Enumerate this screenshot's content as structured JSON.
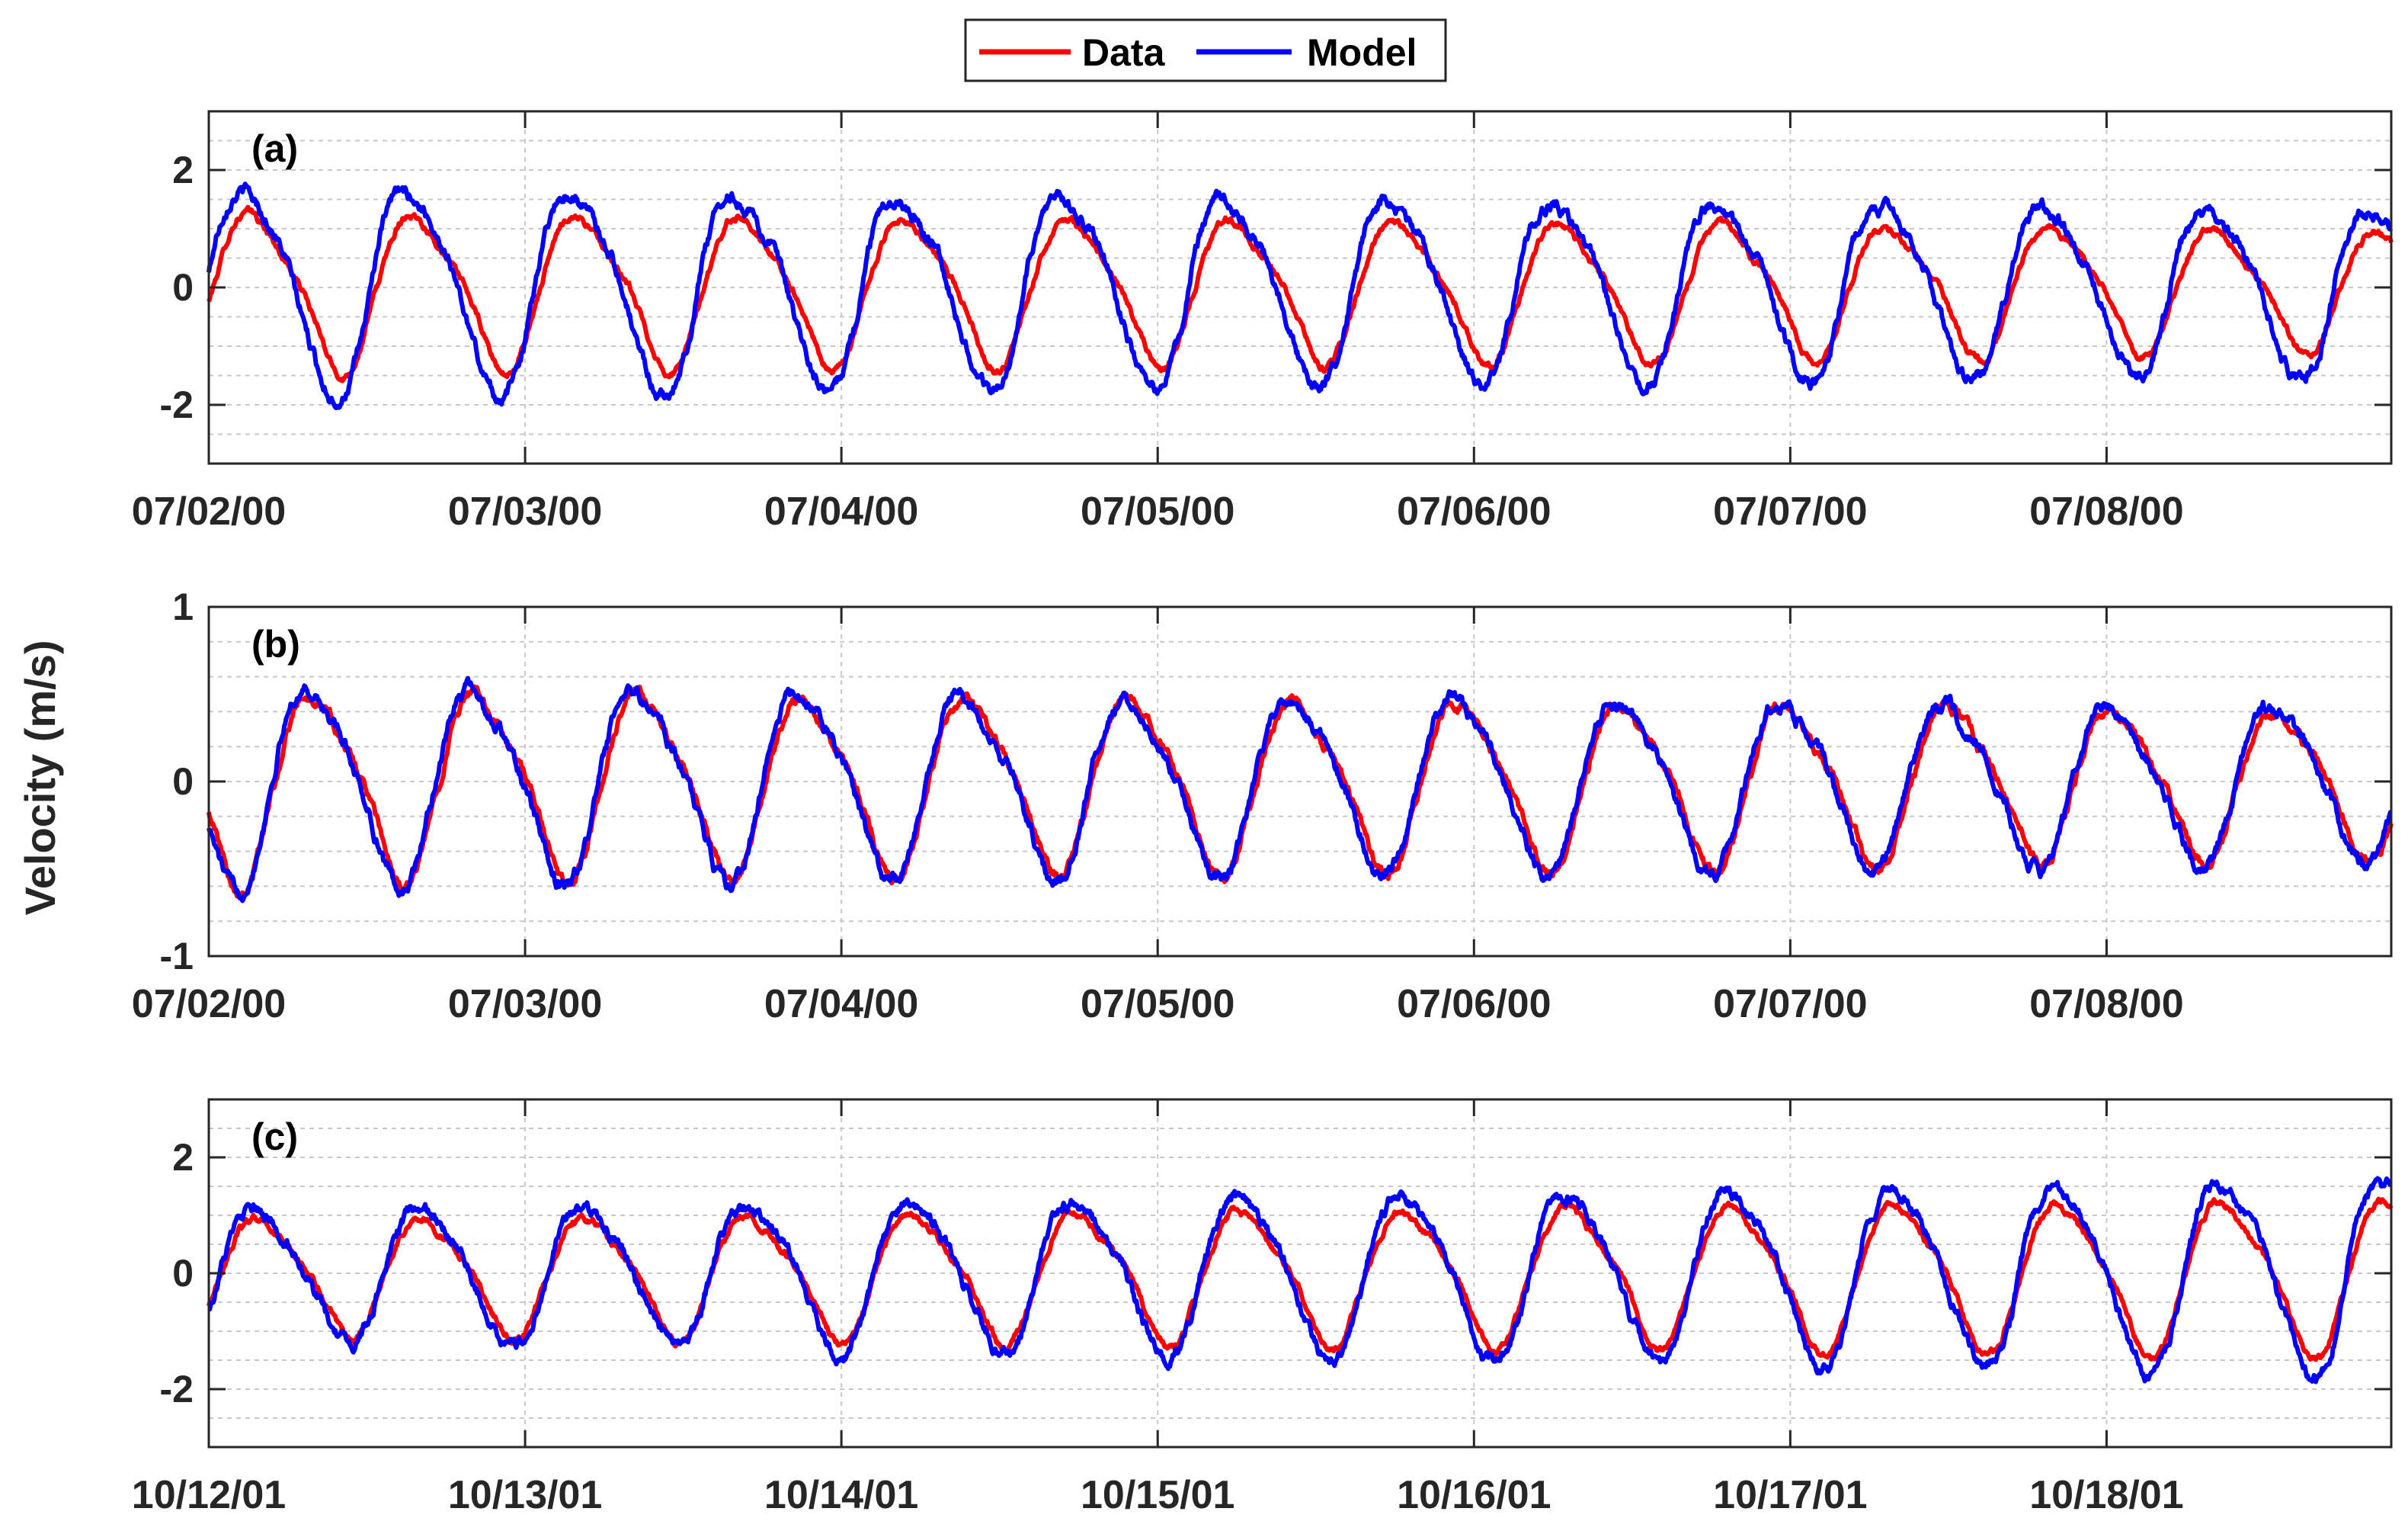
{
  "legend": {
    "entries": [
      {
        "label": "Data",
        "color": "#ff0000"
      },
      {
        "label": "Model",
        "color": "#0000ff"
      }
    ]
  },
  "ylabel": "Velocity (m/s)",
  "chart_data": [
    {
      "type": "line",
      "panel_label": "(a)",
      "x_ticks": [
        "07/02/00",
        "07/03/00",
        "07/04/00",
        "07/05/00",
        "07/06/00",
        "07/07/00",
        "07/08/00"
      ],
      "x_range_days": [
        0,
        6.9
      ],
      "ylim": [
        -3,
        3
      ],
      "y_ticks": [
        -2,
        0,
        2
      ],
      "grid": true,
      "series": [
        {
          "name": "Data",
          "color": "#ff0000",
          "amplitude_start": 1.45,
          "amplitude_end": 1.1,
          "period_hours": 12.42,
          "phase_days": 0.02,
          "sharpness": 0.9,
          "noise": 0.04
        },
        {
          "name": "Model",
          "color": "#0000ff",
          "amplitude_start": 1.85,
          "amplitude_end": 1.45,
          "period_hours": 12.42,
          "phase_days": 0.0,
          "sharpness": 1.15,
          "noise": 0.07
        }
      ]
    },
    {
      "type": "line",
      "panel_label": "(b)",
      "x_ticks": [
        "07/02/00",
        "07/03/00",
        "07/04/00",
        "07/05/00",
        "07/06/00",
        "07/07/00",
        "07/08/00"
      ],
      "x_range_days": [
        0,
        6.9
      ],
      "ylim": [
        -1,
        1
      ],
      "y_ticks": [
        -1,
        0,
        1
      ],
      "grid": true,
      "series": [
        {
          "name": "Data",
          "color": "#ff0000",
          "amplitude_start": 0.58,
          "amplitude_end": 0.45,
          "period_hours": 12.42,
          "phase_days": 0.215,
          "sharpness": 0.9,
          "noise": 0.02
        },
        {
          "name": "Model",
          "color": "#0000ff",
          "amplitude_start": 0.6,
          "amplitude_end": 0.46,
          "period_hours": 12.42,
          "phase_days": 0.205,
          "sharpness": 1.0,
          "noise": 0.025
        }
      ]
    },
    {
      "type": "line",
      "panel_label": "(c)",
      "x_ticks": [
        "10/12/01",
        "10/13/01",
        "10/14/01",
        "10/15/01",
        "10/16/01",
        "10/17/01",
        "10/18/01"
      ],
      "x_range_days": [
        0,
        6.9
      ],
      "ylim": [
        -3,
        3
      ],
      "y_ticks": [
        -2,
        0,
        2
      ],
      "grid": true,
      "series": [
        {
          "name": "Data",
          "color": "#ff0000",
          "amplitude_start": 1.05,
          "amplitude_end": 1.4,
          "period_hours": 12.42,
          "phase_days": 0.045,
          "sharpness": 0.9,
          "noise": 0.04
        },
        {
          "name": "Model",
          "color": "#0000ff",
          "amplitude_start": 1.15,
          "amplitude_end": 1.75,
          "period_hours": 12.42,
          "phase_days": 0.04,
          "sharpness": 1.1,
          "noise": 0.07
        }
      ]
    }
  ]
}
